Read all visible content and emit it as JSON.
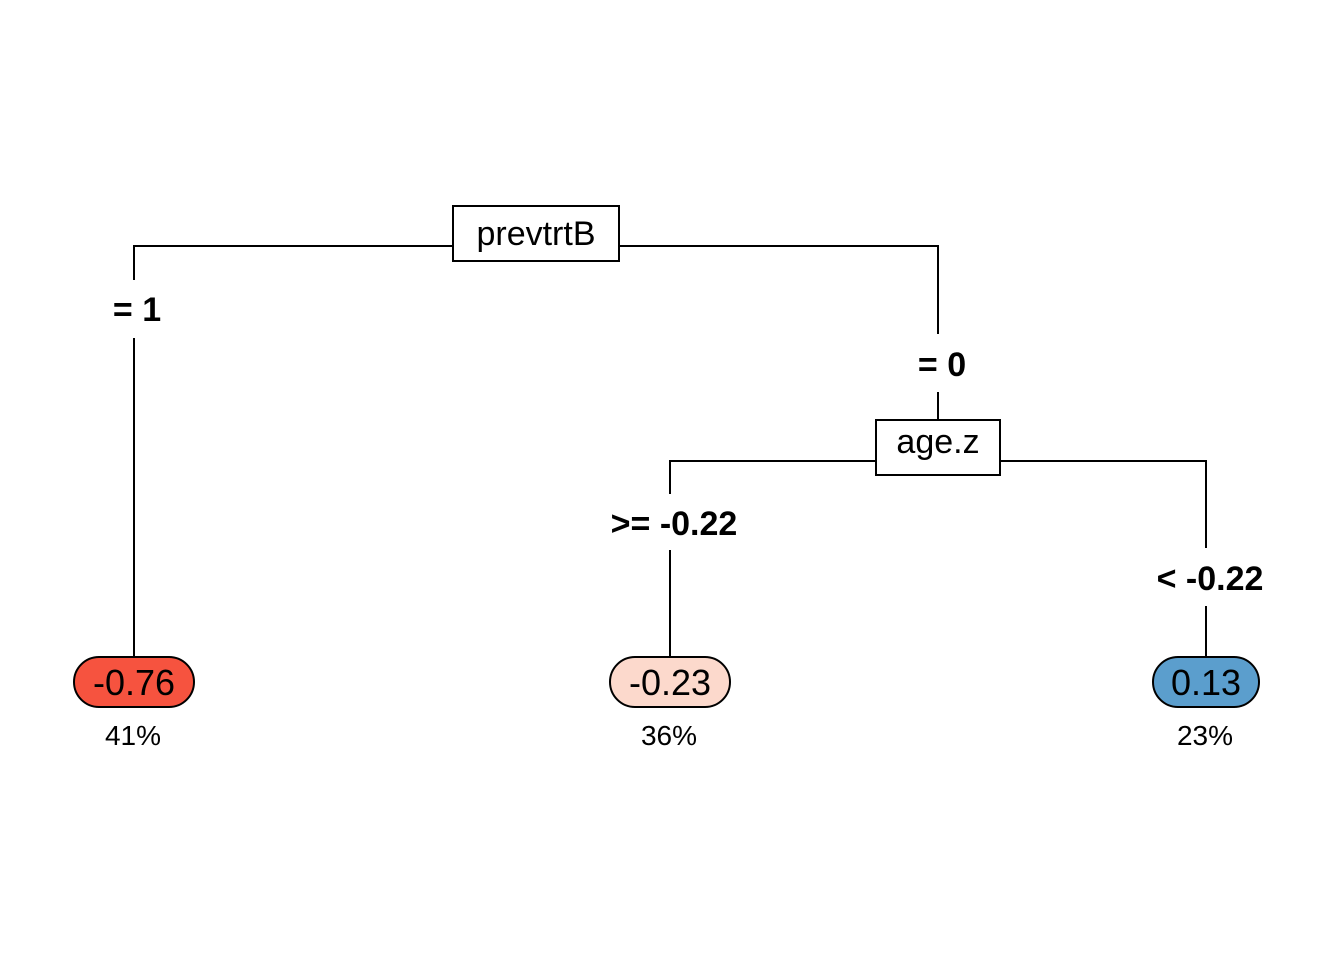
{
  "tree": {
    "root": {
      "variable": "prevtrtB",
      "left_split": "= 1",
      "right_split": "= 0"
    },
    "node2": {
      "variable": "age.z",
      "left_split": ">= -0.22",
      "right_split": "< -0.22"
    },
    "leaves": [
      {
        "value": "-0.76",
        "percent": "41%",
        "color": "#f6533f"
      },
      {
        "value": "-0.23",
        "percent": "36%",
        "color": "#fcd9cc"
      },
      {
        "value": "0.13",
        "percent": "23%",
        "color": "#5b9ecd"
      }
    ]
  }
}
